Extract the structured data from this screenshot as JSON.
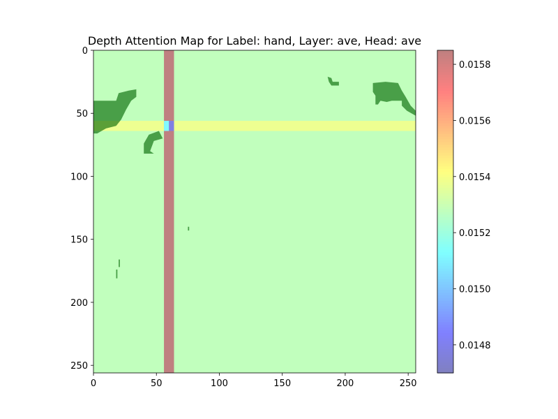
{
  "chart_data": {
    "type": "heatmap",
    "title": "Depth Attention Map for Label: hand, Layer: ave, Head: ave",
    "xlabel": "",
    "ylabel": "",
    "xlim": [
      0,
      256
    ],
    "ylim": [
      256,
      0
    ],
    "x_ticks": [
      0,
      50,
      100,
      150,
      200,
      250
    ],
    "y_ticks": [
      0,
      50,
      100,
      150,
      200,
      250
    ],
    "grid": false,
    "colorbar": {
      "cmap": "jet",
      "alpha": 0.5,
      "range": [
        0.0147,
        0.01585
      ],
      "ticks": [
        "0.0148",
        "0.0150",
        "0.0152",
        "0.0154",
        "0.0156",
        "0.0158"
      ]
    },
    "attention": {
      "background_value": 0.01528,
      "vertical_band": {
        "x": [
          56,
          64
        ],
        "value": 0.01585
      },
      "horizontal_band": {
        "y": [
          56,
          64
        ],
        "value": 0.01538
      },
      "intersection": [
        {
          "x": [
            56,
            60
          ],
          "y": [
            56,
            64
          ],
          "value": 0.01512
        },
        {
          "x": [
            60,
            64
          ],
          "y": [
            56,
            64
          ],
          "value": 0.01478
        }
      ]
    },
    "overlay": {
      "label": "hand",
      "color": "#006400",
      "regions": [
        [
          [
            0,
            40
          ],
          [
            18,
            40
          ],
          [
            20,
            34
          ],
          [
            28,
            32
          ],
          [
            34,
            31
          ],
          [
            34,
            37
          ],
          [
            30,
            40
          ],
          [
            26,
            47
          ],
          [
            22,
            55
          ],
          [
            18,
            60
          ],
          [
            10,
            62
          ],
          [
            3,
            66
          ],
          [
            0,
            66
          ]
        ],
        [
          [
            40,
            82
          ],
          [
            40,
            74
          ],
          [
            44,
            67
          ],
          [
            52,
            64
          ],
          [
            55,
            70
          ],
          [
            48,
            72
          ],
          [
            45,
            80
          ],
          [
            48,
            82
          ]
        ],
        [
          [
            186,
            21
          ],
          [
            189,
            22
          ],
          [
            190,
            25
          ],
          [
            195,
            25
          ],
          [
            195,
            28
          ],
          [
            189,
            28
          ],
          [
            187,
            25
          ]
        ],
        [
          [
            222,
            26
          ],
          [
            232,
            25
          ],
          [
            242,
            26
          ],
          [
            245,
            32
          ],
          [
            248,
            37
          ],
          [
            252,
            44
          ],
          [
            256,
            48
          ],
          [
            256,
            52
          ],
          [
            249,
            48
          ],
          [
            245,
            44
          ],
          [
            245,
            40
          ],
          [
            237,
            40
          ],
          [
            233,
            41
          ],
          [
            228,
            40
          ],
          [
            226,
            43
          ],
          [
            224,
            43
          ],
          [
            224,
            36
          ],
          [
            222,
            33
          ],
          [
            222,
            30
          ]
        ],
        [
          [
            75,
            140
          ],
          [
            76,
            140
          ],
          [
            76,
            143
          ],
          [
            75,
            143
          ]
        ],
        [
          [
            20,
            166
          ],
          [
            21,
            166
          ],
          [
            21,
            172
          ],
          [
            20,
            172
          ]
        ],
        [
          [
            18,
            174
          ],
          [
            19,
            174
          ],
          [
            19,
            181
          ],
          [
            18,
            181
          ]
        ]
      ]
    }
  }
}
